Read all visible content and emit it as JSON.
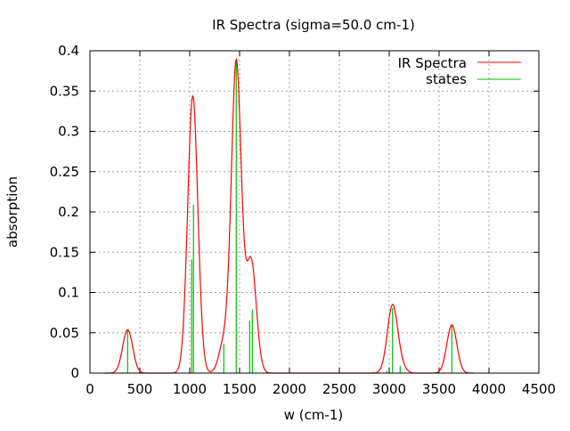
{
  "chart_data": {
    "type": "line",
    "title": "IR Spectra (sigma=50.0 cm-1)",
    "xlabel": "w (cm-1)",
    "ylabel": "absorption",
    "xlim": [
      0,
      4500
    ],
    "ylim": [
      0,
      0.4
    ],
    "xticks": [
      "0",
      "500",
      "1000",
      "1500",
      "2000",
      "2500",
      "3000",
      "3500",
      "4000",
      "4500"
    ],
    "yticks": [
      "0",
      "0.05",
      "0.1",
      "0.15",
      "0.2",
      "0.25",
      "0.3",
      "0.35",
      "0.4"
    ],
    "grid": true,
    "legend_position": "top-right",
    "sigma": 50.0,
    "series": [
      {
        "name": "IR Spectra",
        "kind": "gaussian-broadened sum of states",
        "color": "#ff0000"
      },
      {
        "name": "states",
        "kind": "impulses",
        "color": "#00c000",
        "x": [
          378,
          1020,
          1038,
          1342,
          1467,
          1601,
          1628,
          2976,
          3033,
          3110,
          3628
        ],
        "y": [
          0.054,
          0.141,
          0.209,
          0.036,
          0.386,
          0.065,
          0.079,
          0.003,
          0.081,
          0.009,
          0.06
        ]
      }
    ]
  }
}
